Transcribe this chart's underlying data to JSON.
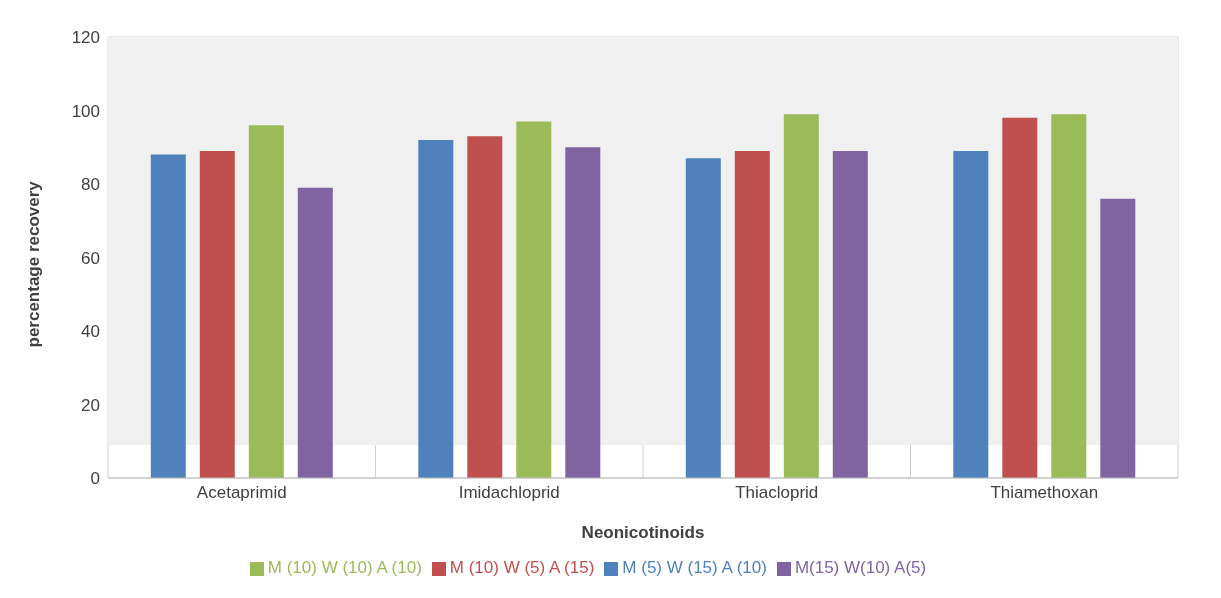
{
  "chart_data": {
    "type": "bar",
    "xlabel": "Neonicotinoids",
    "ylabel": "percentage recovery",
    "categories": [
      "Acetaprimid",
      "Imidachloprid",
      "Thiacloprid",
      "Thiamethoxan"
    ],
    "series": [
      {
        "name": "M (5) W (15) A (10)",
        "color": "#4f81bd",
        "values": [
          88,
          92,
          87,
          89
        ]
      },
      {
        "name": "M (10) W (5) A (15)",
        "color": "#c0504d",
        "values": [
          89,
          93,
          89,
          98
        ]
      },
      {
        "name": "M (10) W (10) A (10)",
        "color": "#9bbb59",
        "values": [
          96,
          97,
          99,
          99
        ]
      },
      {
        "name": "M(15) W(10) A(5)",
        "color": "#8064a2",
        "values": [
          79,
          90,
          89,
          76
        ]
      }
    ],
    "ylim": [
      0,
      120
    ],
    "yticks": [
      0,
      20,
      40,
      60,
      80,
      100,
      120
    ],
    "grid": true,
    "legend": "bottom"
  }
}
